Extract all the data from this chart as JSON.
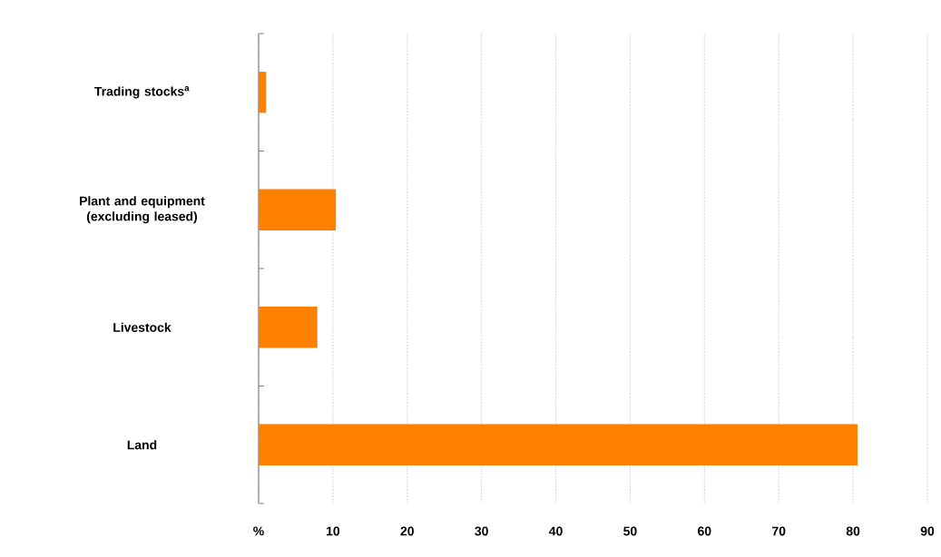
{
  "chart_data": {
    "type": "bar",
    "orientation": "horizontal",
    "categories": [
      "Trading stocks$^{a}$",
      "Plant and equipment (excluding leased)",
      "Livestock",
      "Land"
    ],
    "values": [
      1.0,
      10.4,
      7.9,
      80.6
    ],
    "color": "#ff7f00",
    "xlim": [
      0,
      90
    ],
    "xticks": [
      {
        "value": 0,
        "label": "%"
      },
      10,
      20,
      30,
      40,
      50,
      60,
      70,
      80,
      90
    ],
    "grid": "x"
  }
}
